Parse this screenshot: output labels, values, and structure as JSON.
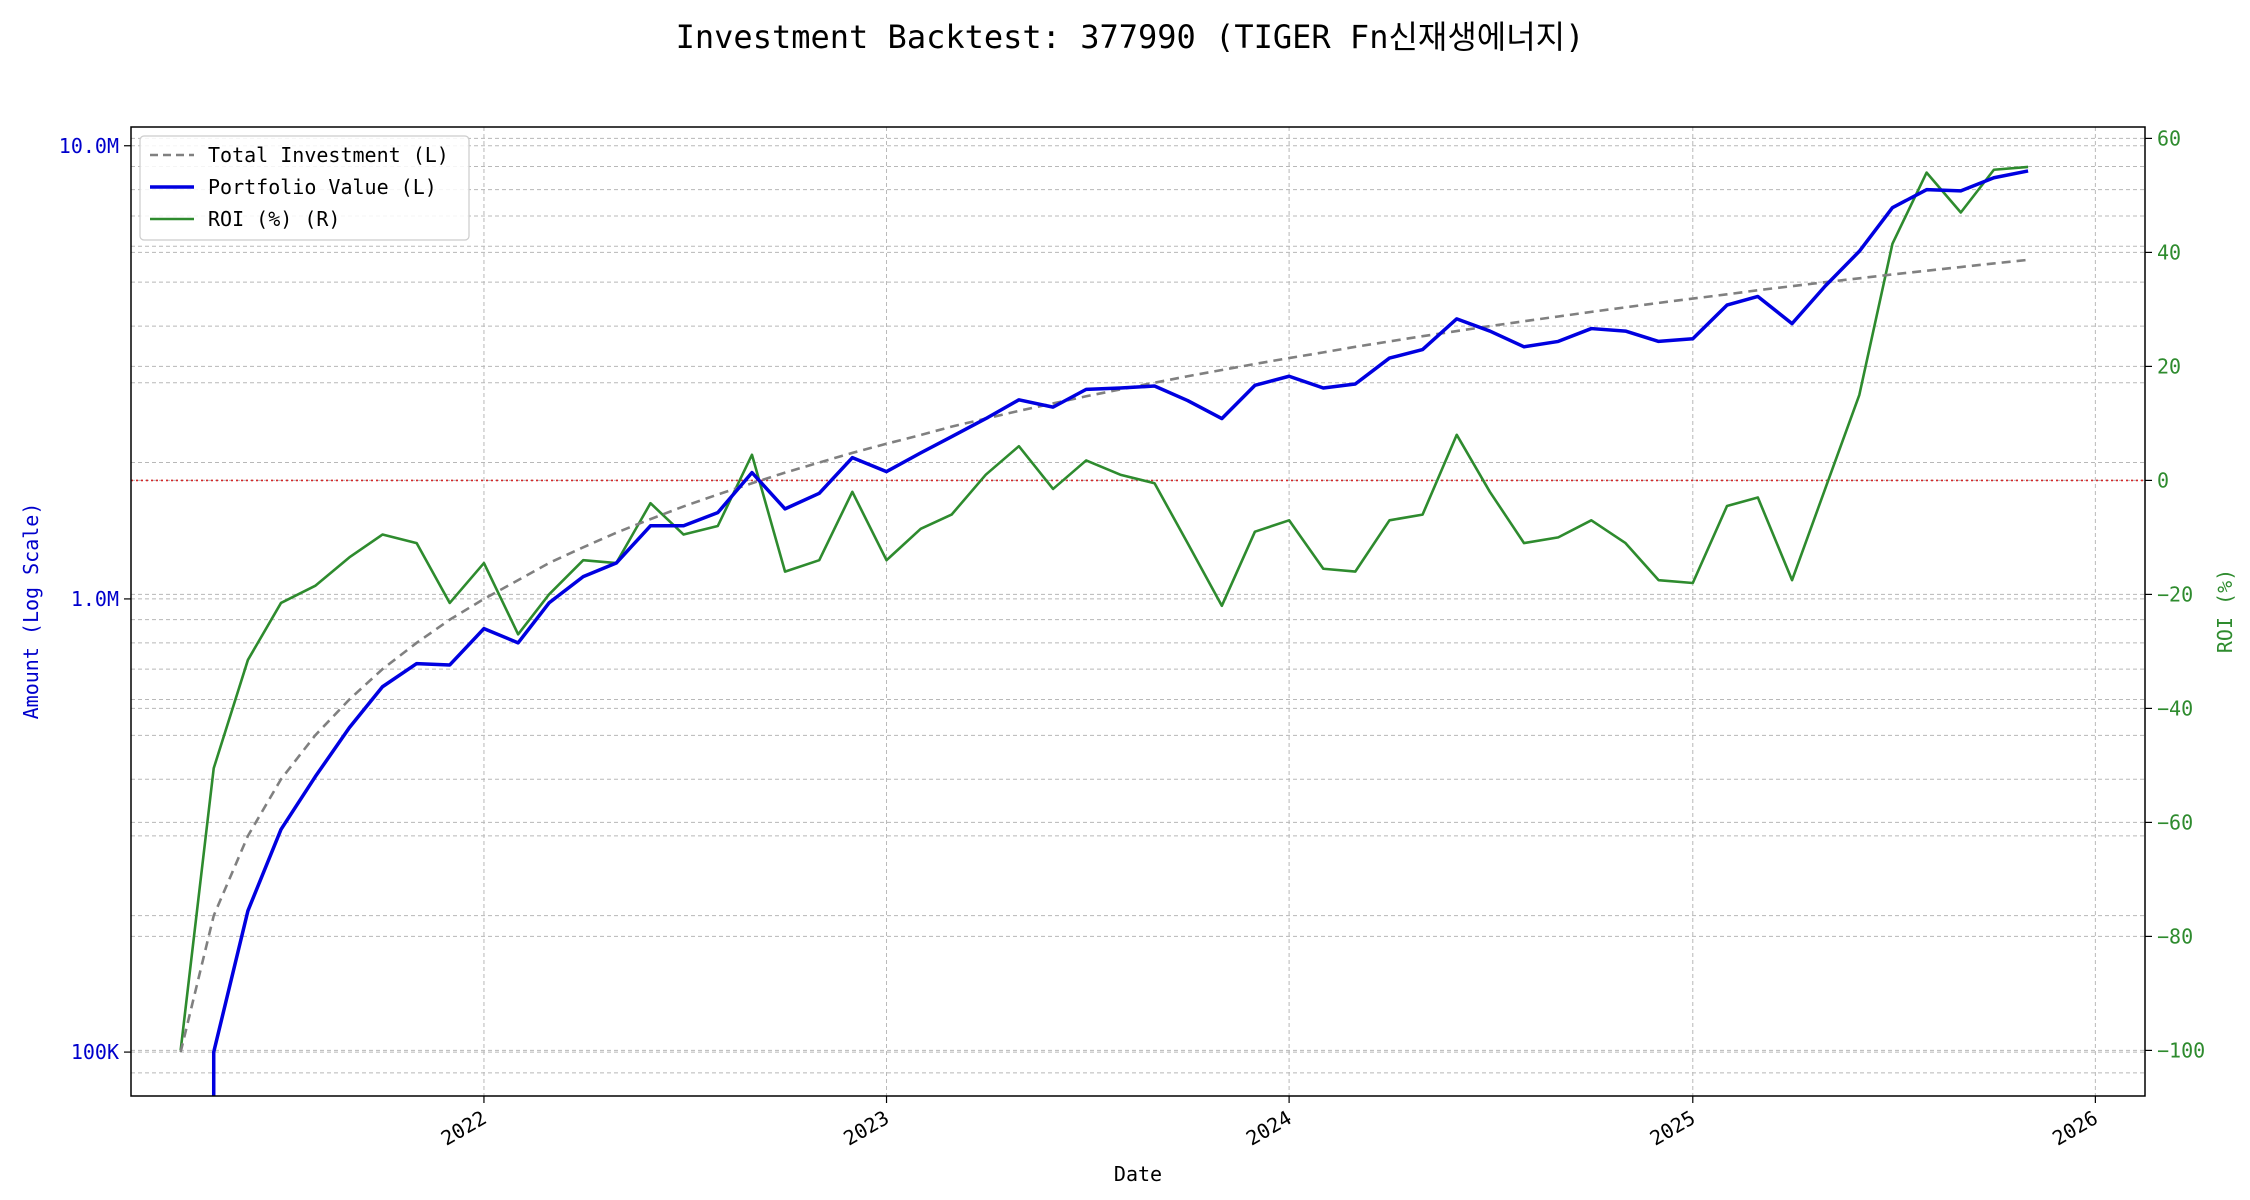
{
  "chart_data": {
    "type": "line",
    "title": "Investment Backtest: 377990 (TIGER Fn신재생에너지)",
    "xlabel": "Date",
    "ylabel_left": "Amount (Log Scale)",
    "ylabel_right": "ROI (%)",
    "x_ticks": [
      "2022",
      "2023",
      "2024",
      "2025",
      "2026"
    ],
    "y_left_ticks": [
      "100K",
      "1.0M",
      "10.0M"
    ],
    "y_left_scale": "log",
    "y_left_range": [
      80000,
      11000000
    ],
    "y_right_ticks": [
      "−100",
      "−80",
      "−60",
      "−40",
      "−20",
      "0",
      "20",
      "40",
      "60"
    ],
    "y_right_range": [
      -108,
      62
    ],
    "x_range": [
      "2021-02-15",
      "2026-02-15"
    ],
    "reference_line": {
      "axis": "right",
      "value": 0,
      "color": "#d62728",
      "style": "dotted"
    },
    "grid": true,
    "legend_position": "top-left",
    "dates": [
      "2021-04-01",
      "2021-05-01",
      "2021-06-01",
      "2021-07-01",
      "2021-08-01",
      "2021-09-01",
      "2021-10-01",
      "2021-11-01",
      "2021-12-01",
      "2022-01-01",
      "2022-02-01",
      "2022-03-01",
      "2022-04-01",
      "2022-05-01",
      "2022-06-01",
      "2022-07-01",
      "2022-08-01",
      "2022-09-01",
      "2022-10-01",
      "2022-11-01",
      "2022-12-01",
      "2023-01-01",
      "2023-02-01",
      "2023-03-01",
      "2023-04-01",
      "2023-05-01",
      "2023-06-01",
      "2023-07-01",
      "2023-08-01",
      "2023-09-01",
      "2023-10-01",
      "2023-11-01",
      "2023-12-01",
      "2024-01-01",
      "2024-02-01",
      "2024-03-01",
      "2024-04-01",
      "2024-05-01",
      "2024-06-01",
      "2024-07-01",
      "2024-08-01",
      "2024-09-01",
      "2024-10-01",
      "2024-11-01",
      "2024-12-01",
      "2025-01-01",
      "2025-02-01",
      "2025-03-01",
      "2025-04-01",
      "2025-05-01",
      "2025-06-01",
      "2025-07-01",
      "2025-08-01",
      "2025-09-01",
      "2025-10-01",
      "2025-11-01"
    ],
    "series": [
      {
        "name": "Total Investment (L)",
        "axis": "left",
        "color": "#808080",
        "style": "dashed",
        "values": [
          100000,
          200000,
          300000,
          400000,
          500000,
          600000,
          700000,
          800000,
          900000,
          1000000,
          1100000,
          1200000,
          1300000,
          1400000,
          1500000,
          1600000,
          1700000,
          1800000,
          1900000,
          2000000,
          2100000,
          2200000,
          2300000,
          2400000,
          2500000,
          2600000,
          2700000,
          2800000,
          2900000,
          3000000,
          3100000,
          3200000,
          3300000,
          3400000,
          3500000,
          3600000,
          3700000,
          3800000,
          3900000,
          4000000,
          4100000,
          4200000,
          4300000,
          4400000,
          4500000,
          4600000,
          4700000,
          4800000,
          4900000,
          5000000,
          5100000,
          5200000,
          5300000,
          5400000,
          5500000,
          5600000
        ]
      },
      {
        "name": "Portfolio Value (L)",
        "axis": "left",
        "color": "#0000e0",
        "style": "solid",
        "values": [
          null,
          100000,
          205000,
          310000,
          405000,
          520000,
          640000,
          720000,
          715000,
          860000,
          800000,
          980000,
          1120000,
          1200000,
          1450000,
          1450000,
          1550000,
          1900000,
          1580000,
          1710000,
          2050000,
          1910000,
          2100000,
          2280000,
          2500000,
          2750000,
          2650000,
          2900000,
          2920000,
          2950000,
          2740000,
          2500000,
          2960000,
          3100000,
          2920000,
          2980000,
          3400000,
          3550000,
          4150000,
          3900000,
          3600000,
          3700000,
          3950000,
          3900000,
          3700000,
          3750000,
          4450000,
          4650000,
          4050000,
          4900000,
          5850000,
          7300000,
          8000000,
          7950000,
          8500000,
          8800000
        ]
      },
      {
        "name": "ROI (%) (R)",
        "axis": "right",
        "color": "#2e8b2e",
        "style": "solid",
        "values": [
          -100,
          -50.5,
          -31.5,
          -21.5,
          -18.5,
          -13.5,
          -9.5,
          -11,
          -21.5,
          -14.5,
          -27,
          -20,
          -14,
          -14.5,
          -4,
          -9.5,
          -8,
          4.5,
          -16,
          -14,
          -2,
          -14,
          -8.5,
          -6,
          1,
          6,
          -1.5,
          3.5,
          1,
          -0.5,
          -11,
          -22,
          -9,
          -7,
          -15.5,
          -16,
          -7,
          -6,
          8,
          -2,
          -11,
          -10,
          -7,
          -11,
          -17.5,
          -18,
          -4.5,
          -3,
          -17.5,
          -1.5,
          15,
          41.5,
          54,
          47,
          54.5,
          55
        ]
      }
    ]
  }
}
